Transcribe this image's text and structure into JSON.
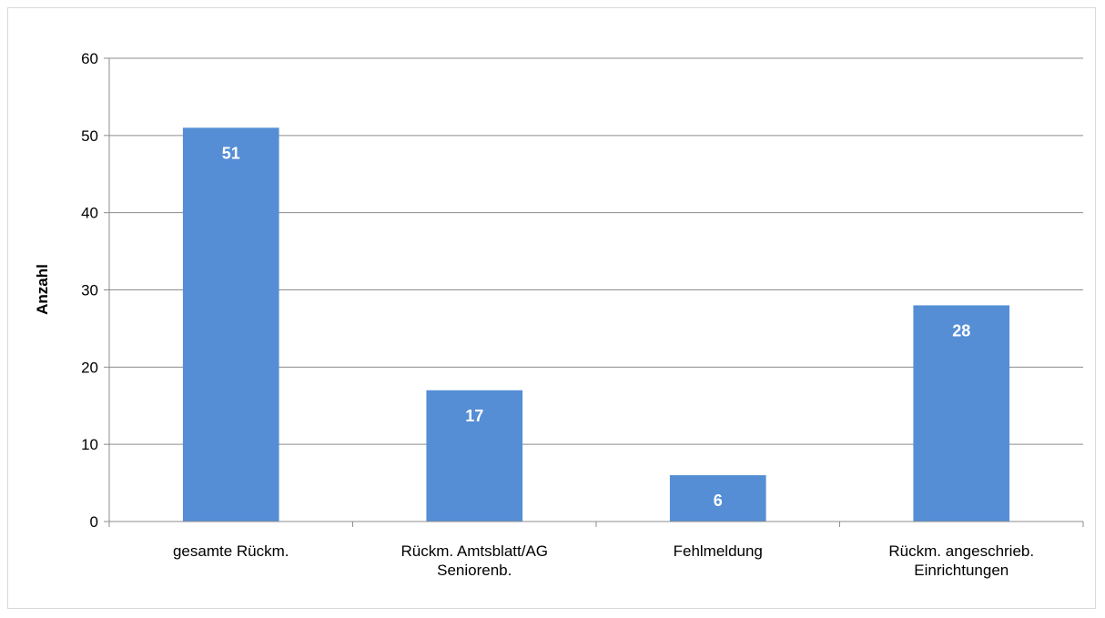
{
  "chart_data": {
    "type": "bar",
    "categories": [
      [
        "gesamte Rückm."
      ],
      [
        "Rückm. Amtsblatt/AG",
        "Seniorenb."
      ],
      [
        "Fehlmeldung"
      ],
      [
        "Rückm. angeschrieb.",
        "Einrichtungen"
      ]
    ],
    "values": [
      51,
      17,
      6,
      28
    ],
    "data_labels": [
      "51",
      "17",
      "6",
      "28"
    ],
    "title": "",
    "xlabel": "",
    "ylabel": "Anzahl",
    "ylim": [
      0,
      60
    ],
    "yticks": [
      0,
      10,
      20,
      30,
      40,
      50,
      60
    ],
    "grid": true,
    "legend": "none",
    "colors": {
      "bar": "#558ed5",
      "grid": "#8c8c8c",
      "axis": "#8c8c8c"
    }
  }
}
